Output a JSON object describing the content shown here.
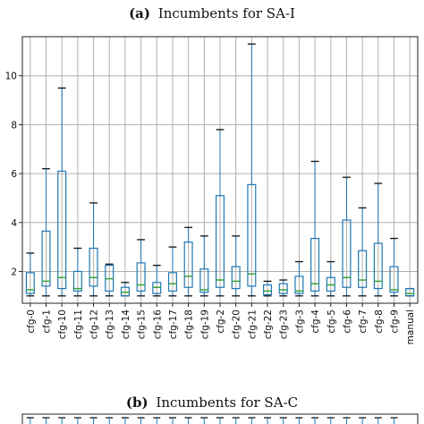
{
  "chart_data": [
    {
      "type": "box",
      "title_prefix": "(a)",
      "title_text": "Incumbents for SA-I",
      "categories": [
        "cfg-0",
        "cfg-1",
        "cfg-10",
        "cfg-11",
        "cfg-12",
        "cfg-13",
        "cfg-14",
        "cfg-15",
        "cfg-16",
        "cfg-17",
        "cfg-18",
        "cfg-19",
        "cfg-2",
        "cfg-20",
        "cfg-21",
        "cfg-22",
        "cfg-23",
        "cfg-3",
        "cfg-4",
        "cfg-5",
        "cfg-6",
        "cfg-7",
        "cfg-8",
        "cfg-9",
        "manual"
      ],
      "boxes": [
        {
          "min": 1.0,
          "q1": 1.1,
          "median": 1.25,
          "q3": 1.95,
          "max": 2.75
        },
        {
          "min": 1.0,
          "q1": 1.4,
          "median": 1.6,
          "q3": 3.65,
          "max": 6.2
        },
        {
          "min": 1.0,
          "q1": 1.3,
          "median": 1.75,
          "q3": 6.1,
          "max": 9.5
        },
        {
          "min": 1.0,
          "q1": 1.2,
          "median": 1.3,
          "q3": 2.0,
          "max": 2.95
        },
        {
          "min": 1.0,
          "q1": 1.4,
          "median": 1.75,
          "q3": 2.95,
          "max": 4.8
        },
        {
          "min": 1.0,
          "q1": 1.2,
          "median": 1.7,
          "q3": 2.25,
          "max": 2.3
        },
        {
          "min": 1.0,
          "q1": 1.0,
          "median": 1.15,
          "q3": 1.35,
          "max": 1.55
        },
        {
          "min": 1.0,
          "q1": 1.2,
          "median": 1.45,
          "q3": 2.35,
          "max": 3.3
        },
        {
          "min": 1.0,
          "q1": 1.1,
          "median": 1.35,
          "q3": 1.55,
          "max": 2.25
        },
        {
          "min": 1.0,
          "q1": 1.2,
          "median": 1.5,
          "q3": 1.95,
          "max": 3.0
        },
        {
          "min": 1.0,
          "q1": 1.35,
          "median": 1.8,
          "q3": 3.2,
          "max": 3.8
        },
        {
          "min": 1.0,
          "q1": 1.15,
          "median": 1.25,
          "q3": 2.1,
          "max": 3.45
        },
        {
          "min": 1.0,
          "q1": 1.35,
          "median": 1.65,
          "q3": 5.1,
          "max": 7.8
        },
        {
          "min": 1.0,
          "q1": 1.3,
          "median": 1.6,
          "q3": 2.2,
          "max": 3.45
        },
        {
          "min": 1.0,
          "q1": 1.4,
          "median": 1.9,
          "q3": 5.55,
          "max": 11.3
        },
        {
          "min": 1.0,
          "q1": 1.05,
          "median": 1.2,
          "q3": 1.45,
          "max": 1.6
        },
        {
          "min": 1.0,
          "q1": 1.1,
          "median": 1.25,
          "q3": 1.5,
          "max": 1.65
        },
        {
          "min": 1.0,
          "q1": 1.1,
          "median": 1.2,
          "q3": 1.8,
          "max": 2.4
        },
        {
          "min": 1.0,
          "q1": 1.2,
          "median": 1.5,
          "q3": 3.35,
          "max": 6.5
        },
        {
          "min": 1.0,
          "q1": 1.2,
          "median": 1.45,
          "q3": 1.75,
          "max": 2.4
        },
        {
          "min": 1.0,
          "q1": 1.35,
          "median": 1.75,
          "q3": 4.1,
          "max": 5.85
        },
        {
          "min": 1.0,
          "q1": 1.35,
          "median": 1.65,
          "q3": 2.85,
          "max": 4.6
        },
        {
          "min": 1.0,
          "q1": 1.3,
          "median": 1.6,
          "q3": 3.15,
          "max": 5.6
        },
        {
          "min": 1.0,
          "q1": 1.15,
          "median": 1.25,
          "q3": 2.2,
          "max": 3.35
        },
        {
          "min": 1.0,
          "q1": 1.0,
          "median": 1.1,
          "q3": 1.3,
          "max": 1.3
        }
      ],
      "y_ticks": [
        2,
        4,
        6,
        8,
        10
      ],
      "ylim": [
        0.7,
        11.6
      ],
      "grid": true,
      "box_color": "#1f77b4",
      "median_color": "#2ca02c"
    },
    {
      "type": "box",
      "title_prefix": "(b)",
      "title_text": "Incumbents for SA-C",
      "partial": true
    }
  ]
}
